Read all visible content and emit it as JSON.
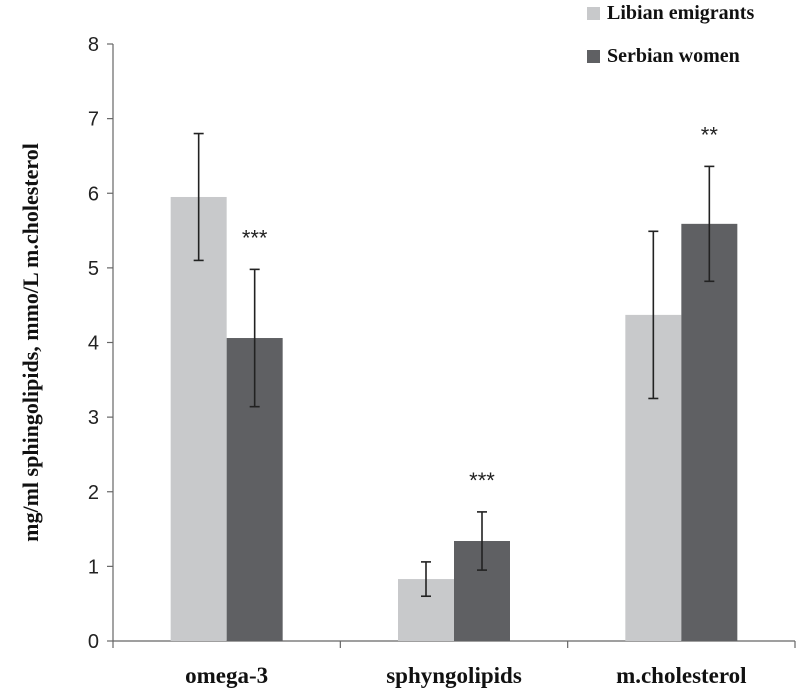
{
  "chart_data": {
    "type": "bar",
    "title": "",
    "xlabel": "",
    "ylabel": "mg/ml sphingolipids, mmo/L m.cholesterol",
    "ylim": [
      0,
      8
    ],
    "yticks": [
      0,
      1,
      2,
      3,
      4,
      5,
      6,
      7,
      8
    ],
    "categories": [
      "omega-3",
      "sphyngolipids",
      "m.cholesterol"
    ],
    "series": [
      {
        "name": "Libian emigrants",
        "color": "#c8c9cb",
        "values": [
          5.95,
          0.83,
          4.37
        ],
        "errors": [
          0.85,
          0.23,
          1.12
        ]
      },
      {
        "name": "Serbian women",
        "color": "#5f6063",
        "values": [
          4.06,
          1.34,
          5.59
        ],
        "errors": [
          0.92,
          0.39,
          0.77
        ]
      }
    ],
    "annotations": [
      {
        "category_index": 0,
        "text": "***"
      },
      {
        "category_index": 1,
        "text": "***"
      },
      {
        "category_index": 2,
        "text": "**"
      }
    ],
    "legend_position": "top-right",
    "grid": false
  }
}
